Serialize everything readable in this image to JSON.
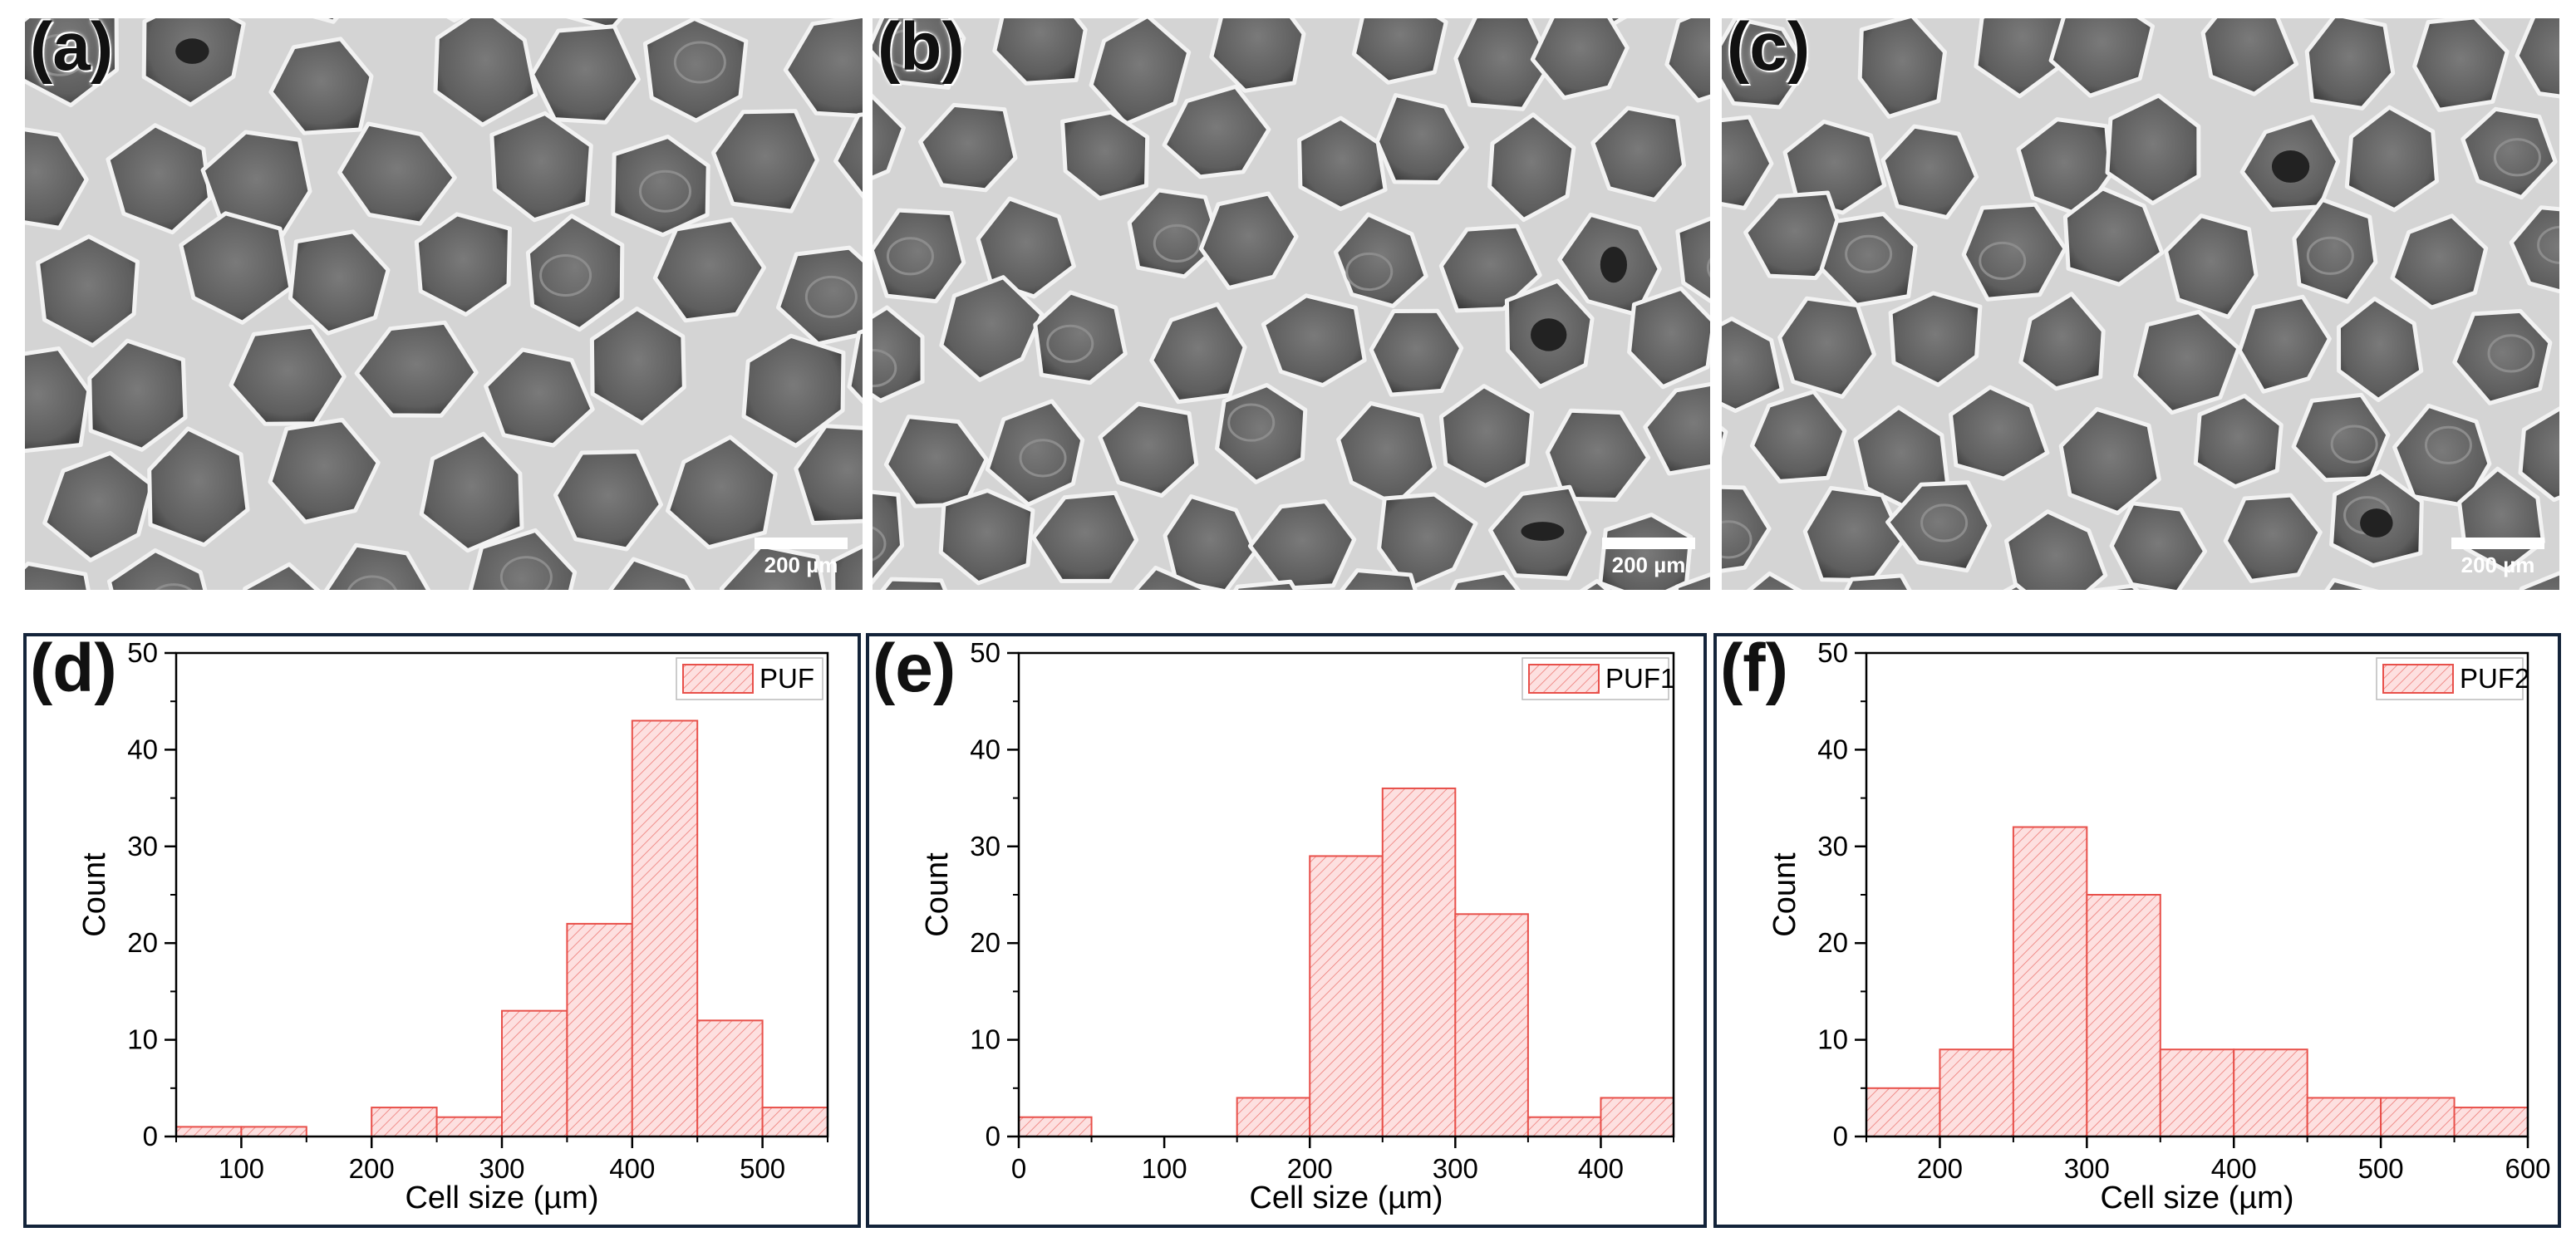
{
  "sem_images": [
    {
      "panel": "(a)",
      "scale_label": "200 µm"
    },
    {
      "panel": "(b)",
      "scale_label": "200 µm"
    },
    {
      "panel": "(c)",
      "scale_label": "200 µm"
    }
  ],
  "chart_data": [
    {
      "type": "bar",
      "panel": "(d)",
      "xlabel": "Cell size (µm)",
      "ylabel": "Count",
      "legend": "PUF",
      "legend_position": "top-right",
      "xlim": [
        50,
        550
      ],
      "ylim": [
        0,
        50
      ],
      "xticks": [
        100,
        200,
        300,
        400,
        500
      ],
      "yticks": [
        0,
        10,
        20,
        30,
        40,
        50
      ],
      "bin_width": 50,
      "bin_starts": [
        50,
        100,
        150,
        200,
        250,
        300,
        350,
        400,
        450,
        500
      ],
      "values": [
        1,
        1,
        0,
        3,
        2,
        13,
        22,
        43,
        12,
        3
      ],
      "bar_fill": "#fde0e0",
      "bar_stroke": "#e8504a"
    },
    {
      "type": "bar",
      "panel": "(e)",
      "xlabel": "Cell size (µm)",
      "ylabel": "Count",
      "legend": "PUF1",
      "legend_position": "top-right",
      "xlim": [
        0,
        450
      ],
      "ylim": [
        0,
        50
      ],
      "xticks": [
        0,
        100,
        200,
        300,
        400
      ],
      "yticks": [
        0,
        10,
        20,
        30,
        40,
        50
      ],
      "bin_width": 50,
      "bin_starts": [
        0,
        50,
        100,
        150,
        200,
        250,
        300,
        350,
        400
      ],
      "values": [
        2,
        0,
        0,
        4,
        29,
        36,
        23,
        2,
        4
      ],
      "bar_fill": "#fde0e0",
      "bar_stroke": "#e8504a"
    },
    {
      "type": "bar",
      "panel": "(f)",
      "xlabel": "Cell size (µm)",
      "ylabel": "Count",
      "legend": "PUF2",
      "legend_position": "top-right",
      "xlim": [
        150,
        600
      ],
      "ylim": [
        0,
        50
      ],
      "xticks": [
        200,
        300,
        400,
        500,
        600
      ],
      "yticks": [
        0,
        10,
        20,
        30,
        40,
        50
      ],
      "bin_width": 50,
      "bin_starts": [
        150,
        200,
        250,
        300,
        350,
        400,
        450,
        500,
        550
      ],
      "values": [
        5,
        9,
        32,
        25,
        9,
        9,
        4,
        4,
        3
      ],
      "bar_fill": "#fde0e0",
      "bar_stroke": "#e8504a"
    }
  ]
}
